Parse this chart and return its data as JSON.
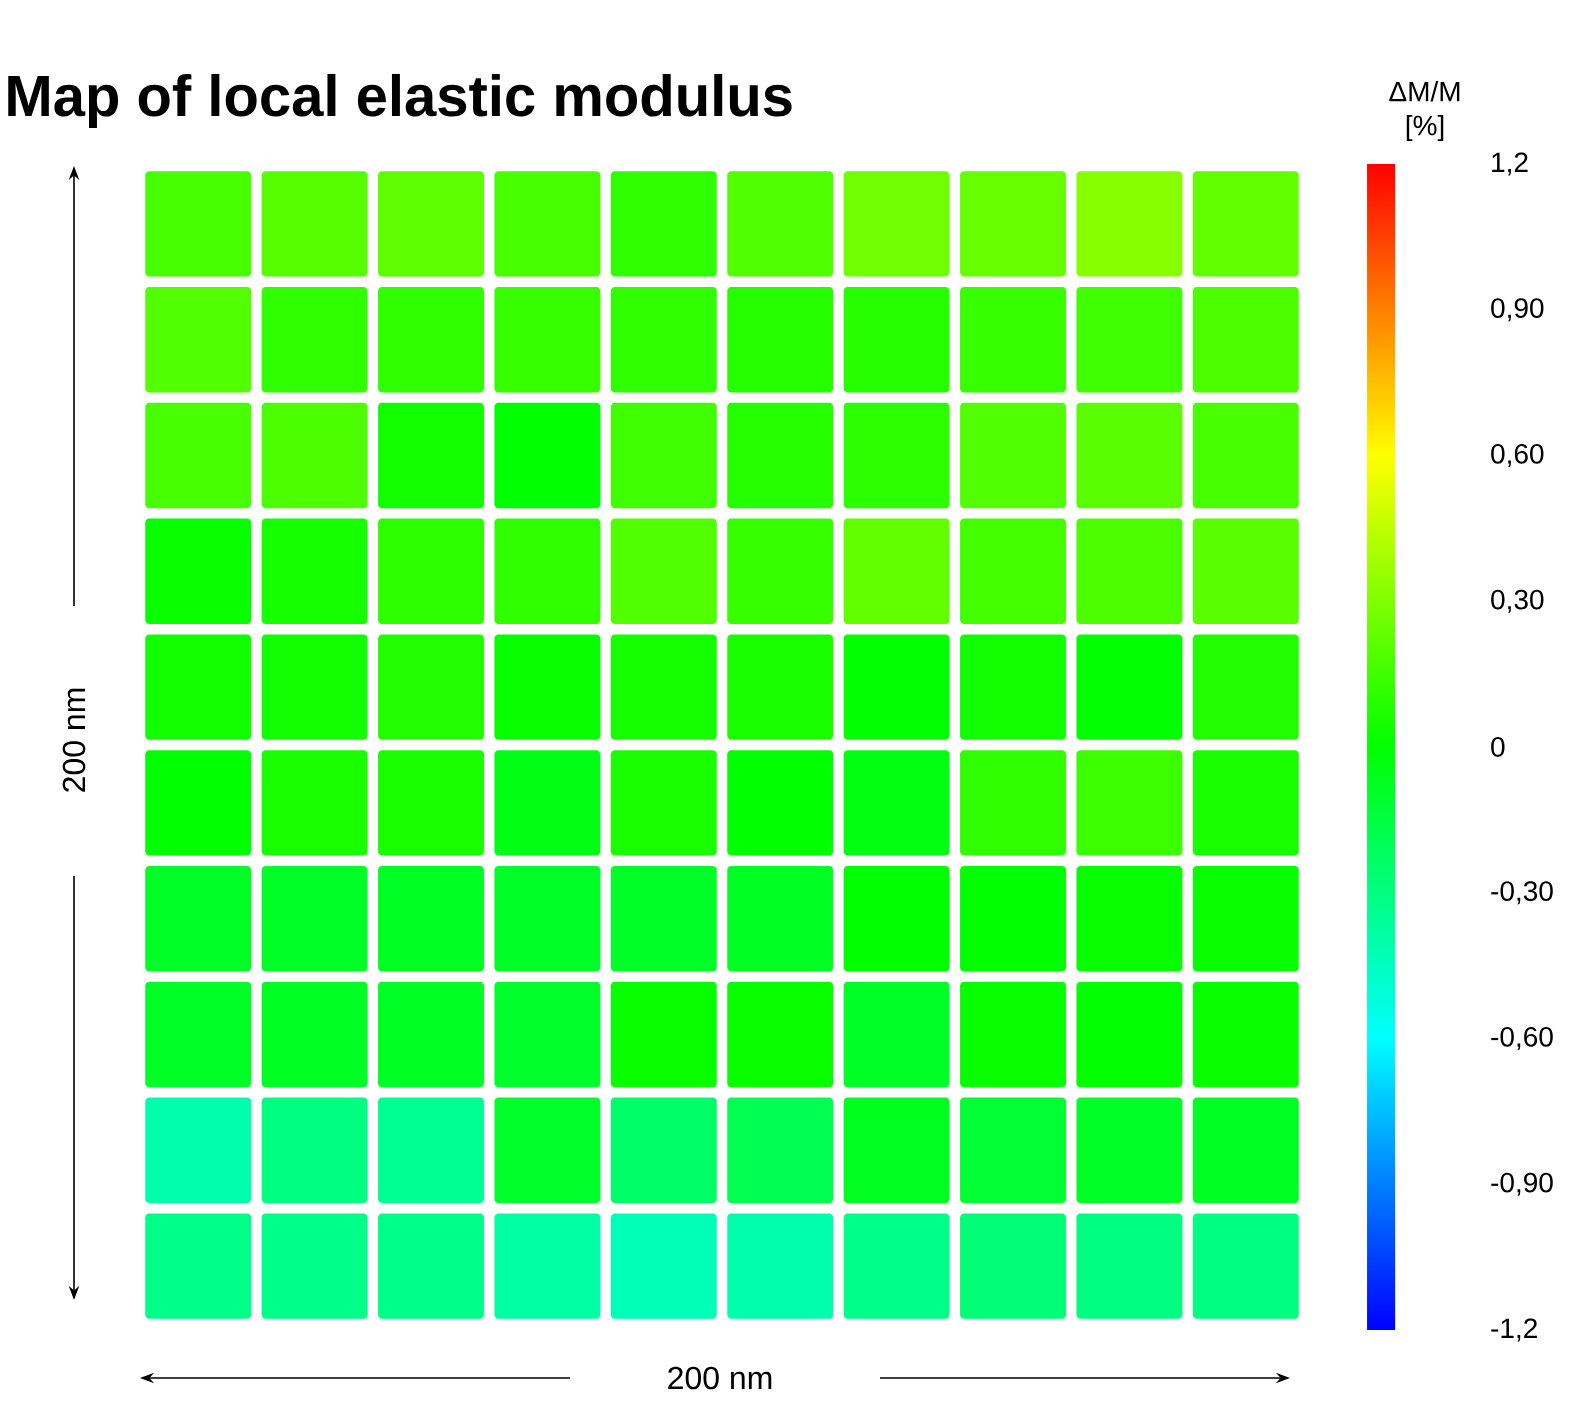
{
  "chart_data": {
    "type": "heatmap",
    "title": "Map of local elastic modulus",
    "xlabel": "200 nm",
    "ylabel": "200 nm",
    "clabel": "ΔM/M [%]",
    "categories": [
      null,
      null,
      null,
      null,
      null,
      null,
      null,
      null,
      null,
      null
    ],
    "y_categories": [
      null,
      null,
      null,
      null,
      null,
      null,
      null,
      null,
      null,
      null
    ],
    "cells": [
      [
        0.17,
        0.2,
        0.22,
        0.17,
        0.11,
        0.19,
        0.26,
        0.24,
        0.32,
        0.23
      ],
      [
        0.19,
        0.11,
        0.11,
        0.13,
        0.11,
        0.09,
        0.09,
        0.13,
        0.15,
        0.18
      ],
      [
        0.17,
        0.18,
        0.04,
        0.0,
        0.15,
        0.09,
        0.1,
        0.19,
        0.21,
        0.17
      ],
      [
        0.02,
        0.05,
        0.1,
        0.11,
        0.19,
        0.13,
        0.23,
        0.16,
        0.18,
        0.21
      ],
      [
        0.04,
        0.04,
        0.08,
        0.02,
        0.05,
        0.06,
        0.01,
        0.04,
        0.01,
        0.08
      ],
      [
        0.0,
        0.06,
        0.06,
        -0.05,
        0.06,
        0.0,
        -0.04,
        0.11,
        0.14,
        0.06
      ],
      [
        -0.09,
        -0.09,
        -0.08,
        -0.09,
        -0.09,
        -0.08,
        0.0,
        0.0,
        0.02,
        0.02
      ],
      [
        -0.09,
        -0.08,
        -0.08,
        -0.1,
        0.02,
        0.02,
        -0.09,
        0.02,
        0.01,
        0.02
      ],
      [
        -0.4,
        -0.3,
        -0.34,
        -0.1,
        -0.24,
        -0.19,
        -0.07,
        -0.12,
        -0.09,
        -0.08
      ],
      [
        -0.32,
        -0.32,
        -0.32,
        -0.38,
        -0.43,
        -0.4,
        -0.32,
        -0.28,
        -0.3,
        -0.3
      ]
    ],
    "clim": [
      -1.2,
      1.2
    ],
    "cticks": [
      {
        "value": 1.2,
        "label": "1,2"
      },
      {
        "value": 0.9,
        "label": "0,90"
      },
      {
        "value": 0.6,
        "label": "0,60"
      },
      {
        "value": 0.3,
        "label": "0,30"
      },
      {
        "value": 0,
        "label": "0"
      },
      {
        "value": -0.3,
        "label": "-0,30"
      },
      {
        "value": -0.6,
        "label": "-0,60"
      },
      {
        "value": -0.9,
        "label": "-0,90"
      },
      {
        "value": -1.2,
        "label": "-1,2"
      }
    ]
  }
}
